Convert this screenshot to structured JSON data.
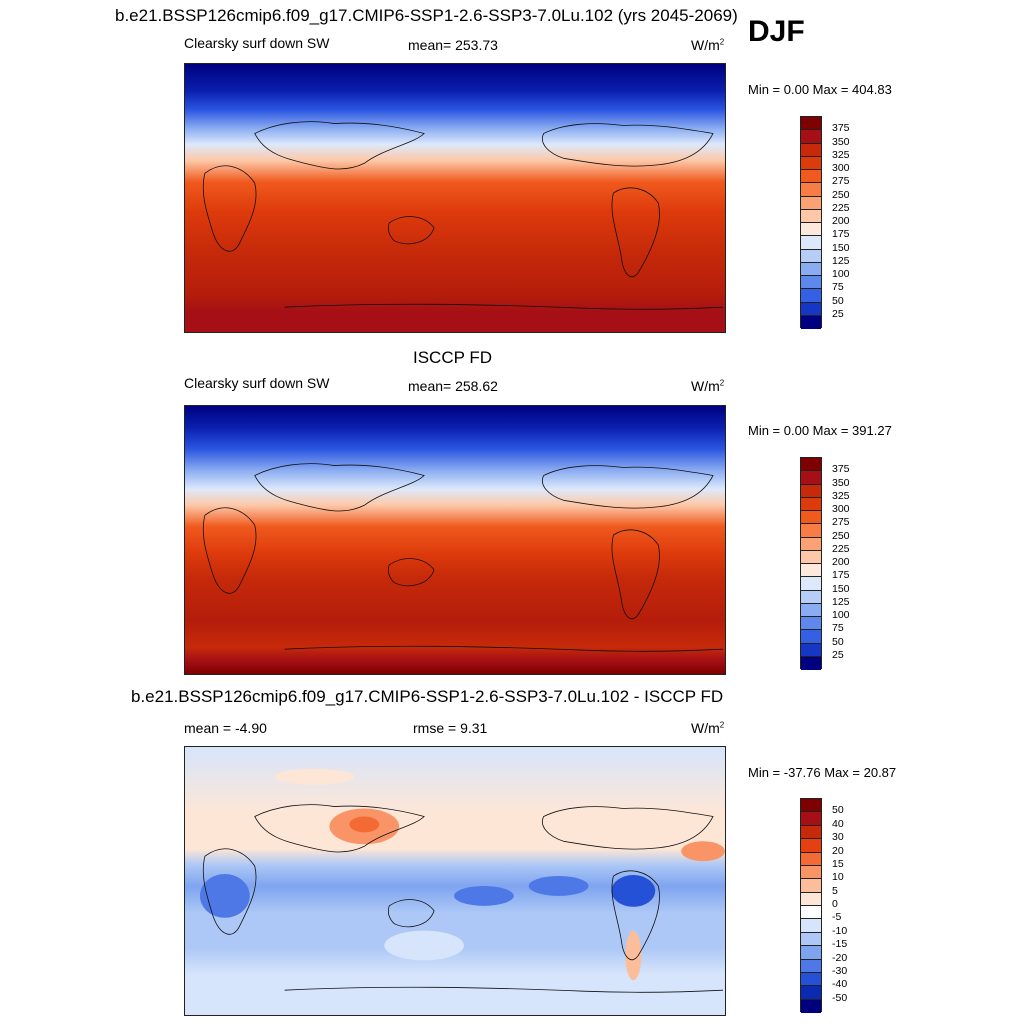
{
  "page": {
    "title": "b.e21.BSSP126cmip6.f09_g17.CMIP6-SSP1-2.6-SSP3-7.0Lu.102 (yrs 2045-2069)",
    "season": "DJF"
  },
  "panels": [
    {
      "id": "model",
      "title": "",
      "left_label": "Clearsky surf down SW",
      "center_label": "mean= 253.73",
      "units": "W/m",
      "units_sup": "2",
      "minmax": "Min =   0.00 Max = 404.83",
      "colorbar": {
        "labels": [
          "375",
          "350",
          "325",
          "300",
          "275",
          "250",
          "225",
          "200",
          "175",
          "150",
          "125",
          "100",
          "75",
          "50",
          "25"
        ],
        "colors": [
          "#7f0000",
          "#a50f15",
          "#c62a0a",
          "#de3b0c",
          "#f05a1e",
          "#f77d44",
          "#fba275",
          "#fdc8a8",
          "#fde9dc",
          "#dde9fb",
          "#b5cdf7",
          "#8aacf2",
          "#5f88ec",
          "#3461e3",
          "#1636c6",
          "#000080"
        ]
      }
    },
    {
      "id": "obs",
      "title": "ISCCP FD",
      "left_label": "Clearsky surf down SW",
      "center_label": "mean= 258.62",
      "units": "W/m",
      "units_sup": "2",
      "minmax": "Min =   0.00 Max = 391.27",
      "colorbar": {
        "labels": [
          "375",
          "350",
          "325",
          "300",
          "275",
          "250",
          "225",
          "200",
          "175",
          "150",
          "125",
          "100",
          "75",
          "50",
          "25"
        ],
        "colors": [
          "#7f0000",
          "#a50f15",
          "#c62a0a",
          "#de3b0c",
          "#f05a1e",
          "#f77d44",
          "#fba275",
          "#fdc8a8",
          "#fde9dc",
          "#dde9fb",
          "#b5cdf7",
          "#8aacf2",
          "#5f88ec",
          "#3461e3",
          "#1636c6",
          "#000080"
        ]
      }
    },
    {
      "id": "diff",
      "title": "b.e21.BSSP126cmip6.f09_g17.CMIP6-SSP1-2.6-SSP3-7.0Lu.102 - ISCCP FD",
      "left_label": "mean =  -4.90",
      "center_label": "rmse =   9.31",
      "units": "W/m",
      "units_sup": "2",
      "minmax": "Min = -37.76 Max =  20.87",
      "colorbar": {
        "labels": [
          "50",
          "40",
          "30",
          "20",
          "15",
          "10",
          "5",
          "0",
          "-5",
          "-10",
          "-15",
          "-20",
          "-30",
          "-40",
          "-50"
        ],
        "colors": [
          "#7f0000",
          "#a50f15",
          "#c62a0a",
          "#e5400f",
          "#f36a35",
          "#f99466",
          "#fcbd9b",
          "#fee6d6",
          "#ffffff",
          "#d6e5fb",
          "#adc8f6",
          "#7fa4ef",
          "#4d78e6",
          "#2451d6",
          "#0a2ab0",
          "#00007f"
        ]
      }
    }
  ]
}
